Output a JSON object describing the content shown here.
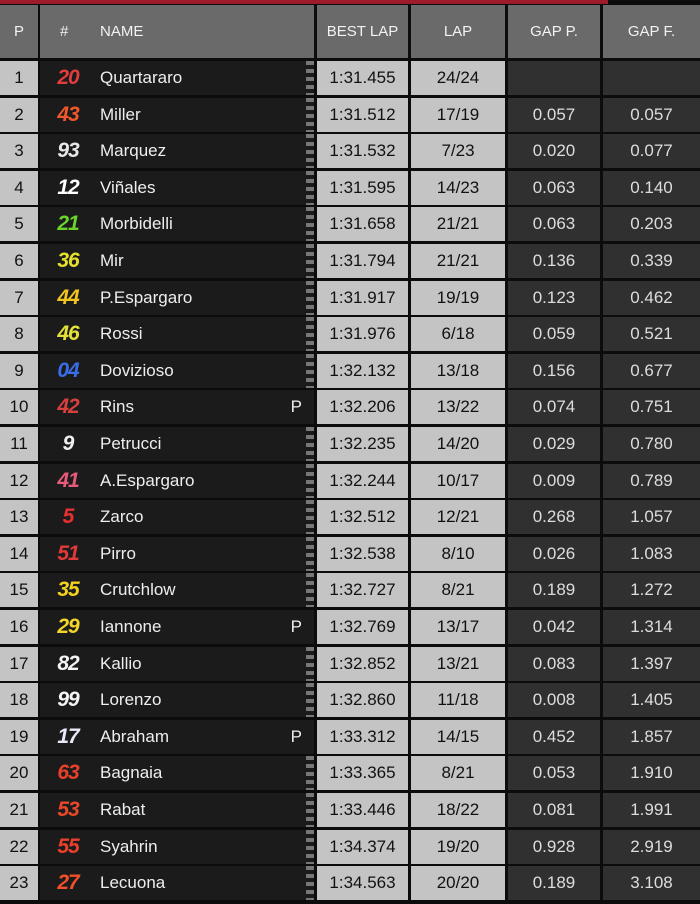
{
  "headers": {
    "p": "P",
    "num": "#",
    "name": "NAME",
    "best_lap": "BEST LAP",
    "lap": "LAP",
    "gap_p": "GAP P.",
    "gap_f": "GAP F."
  },
  "rows": [
    {
      "pos": "1",
      "num": "20",
      "color": "#e23c3c",
      "name": "Quartararo",
      "pit": "",
      "best": "1:31.455",
      "lap": "24/24",
      "gap_p": "",
      "gap_f": ""
    },
    {
      "pos": "2",
      "num": "43",
      "color": "#f0582a",
      "name": "Miller",
      "pit": "",
      "best": "1:31.512",
      "lap": "17/19",
      "gap_p": "0.057",
      "gap_f": "0.057"
    },
    {
      "pos": "3",
      "num": "93",
      "color": "#e8e8e8",
      "name": "Marquez",
      "pit": "",
      "best": "1:31.532",
      "lap": "7/23",
      "gap_p": "0.020",
      "gap_f": "0.077"
    },
    {
      "pos": "4",
      "num": "12",
      "color": "#ffffff",
      "name": "Viñales",
      "pit": "",
      "best": "1:31.595",
      "lap": "14/23",
      "gap_p": "0.063",
      "gap_f": "0.140"
    },
    {
      "pos": "5",
      "num": "21",
      "color": "#6ad42a",
      "name": "Morbidelli",
      "pit": "",
      "best": "1:31.658",
      "lap": "21/21",
      "gap_p": "0.063",
      "gap_f": "0.203"
    },
    {
      "pos": "6",
      "num": "36",
      "color": "#e6e02a",
      "name": "Mir",
      "pit": "",
      "best": "1:31.794",
      "lap": "21/21",
      "gap_p": "0.136",
      "gap_f": "0.339"
    },
    {
      "pos": "7",
      "num": "44",
      "color": "#f2c41e",
      "name": "P.Espargaro",
      "pit": "",
      "best": "1:31.917",
      "lap": "19/19",
      "gap_p": "0.123",
      "gap_f": "0.462"
    },
    {
      "pos": "8",
      "num": "46",
      "color": "#e4e238",
      "name": "Rossi",
      "pit": "",
      "best": "1:31.976",
      "lap": "6/18",
      "gap_p": "0.059",
      "gap_f": "0.521"
    },
    {
      "pos": "9",
      "num": "04",
      "color": "#3a6ee8",
      "name": "Dovizioso",
      "pit": "",
      "best": "1:32.132",
      "lap": "13/18",
      "gap_p": "0.156",
      "gap_f": "0.677"
    },
    {
      "pos": "10",
      "num": "42",
      "color": "#d84040",
      "name": "Rins",
      "pit": "P",
      "best": "1:32.206",
      "lap": "13/22",
      "gap_p": "0.074",
      "gap_f": "0.751"
    },
    {
      "pos": "11",
      "num": "9",
      "color": "#f0f0f0",
      "name": "Petrucci",
      "pit": "",
      "best": "1:32.235",
      "lap": "14/20",
      "gap_p": "0.029",
      "gap_f": "0.780"
    },
    {
      "pos": "12",
      "num": "41",
      "color": "#e85a7a",
      "name": "A.Espargaro",
      "pit": "",
      "best": "1:32.244",
      "lap": "10/17",
      "gap_p": "0.009",
      "gap_f": "0.789"
    },
    {
      "pos": "13",
      "num": "5",
      "color": "#e83030",
      "name": "Zarco",
      "pit": "",
      "best": "1:32.512",
      "lap": "12/21",
      "gap_p": "0.268",
      "gap_f": "1.057"
    },
    {
      "pos": "14",
      "num": "51",
      "color": "#e03a3a",
      "name": "Pirro",
      "pit": "",
      "best": "1:32.538",
      "lap": "8/10",
      "gap_p": "0.026",
      "gap_f": "1.083"
    },
    {
      "pos": "15",
      "num": "35",
      "color": "#f2d21e",
      "name": "Crutchlow",
      "pit": "",
      "best": "1:32.727",
      "lap": "8/21",
      "gap_p": "0.189",
      "gap_f": "1.272"
    },
    {
      "pos": "16",
      "num": "29",
      "color": "#f2d62a",
      "name": "Iannone",
      "pit": "P",
      "best": "1:32.769",
      "lap": "13/17",
      "gap_p": "0.042",
      "gap_f": "1.314"
    },
    {
      "pos": "17",
      "num": "82",
      "color": "#f4f4f4",
      "name": "Kallio",
      "pit": "",
      "best": "1:32.852",
      "lap": "13/21",
      "gap_p": "0.083",
      "gap_f": "1.397"
    },
    {
      "pos": "18",
      "num": "99",
      "color": "#f4f4f4",
      "name": "Lorenzo",
      "pit": "",
      "best": "1:32.860",
      "lap": "11/18",
      "gap_p": "0.008",
      "gap_f": "1.405"
    },
    {
      "pos": "19",
      "num": "17",
      "color": "#e8e8f8",
      "name": "Abraham",
      "pit": "P",
      "best": "1:33.312",
      "lap": "14/15",
      "gap_p": "0.452",
      "gap_f": "1.857"
    },
    {
      "pos": "20",
      "num": "63",
      "color": "#e8402a",
      "name": "Bagnaia",
      "pit": "",
      "best": "1:33.365",
      "lap": "8/21",
      "gap_p": "0.053",
      "gap_f": "1.910"
    },
    {
      "pos": "21",
      "num": "53",
      "color": "#e8482a",
      "name": "Rabat",
      "pit": "",
      "best": "1:33.446",
      "lap": "18/22",
      "gap_p": "0.081",
      "gap_f": "1.991"
    },
    {
      "pos": "22",
      "num": "55",
      "color": "#e8402a",
      "name": "Syahrin",
      "pit": "",
      "best": "1:34.374",
      "lap": "19/20",
      "gap_p": "0.928",
      "gap_f": "2.919"
    },
    {
      "pos": "23",
      "num": "27",
      "color": "#f0502a",
      "name": "Lecuona",
      "pit": "",
      "best": "1:34.563",
      "lap": "20/20",
      "gap_p": "0.189",
      "gap_f": "3.108"
    }
  ]
}
